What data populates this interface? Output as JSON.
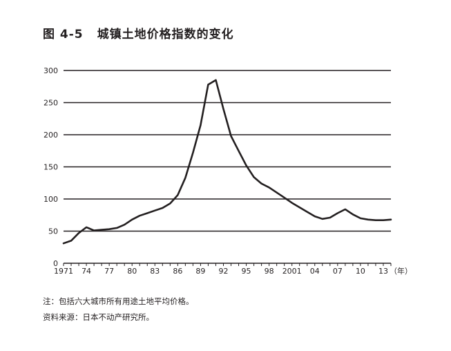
{
  "figure_number": "图 4-5",
  "figure_title": "城镇土地价格指数的变化",
  "notes": {
    "note": "注：包括六大城市所有用途土地平均价格。",
    "source": "资料来源：日本不动产研究所。"
  },
  "chart_data": {
    "type": "line",
    "title": "城镇土地价格指数的变化",
    "xlabel": "",
    "ylabel": "",
    "x_unit_label": "（年）",
    "ylim": [
      0,
      300
    ],
    "xlim": [
      1971,
      2014
    ],
    "y_ticks": [
      0,
      50,
      100,
      150,
      200,
      250,
      300
    ],
    "x_tick_values": [
      1971,
      1974,
      1977,
      1980,
      1983,
      1986,
      1989,
      1992,
      1995,
      1998,
      2001,
      2004,
      2007,
      2010,
      2013
    ],
    "x_tick_labels": [
      "1971",
      "74",
      "77",
      "80",
      "83",
      "86",
      "89",
      "92",
      "95",
      "98",
      "2001",
      "04",
      "07",
      "10",
      "13"
    ],
    "grid": "horizontal",
    "legend": "none",
    "line_color": "#231f20",
    "series": [
      {
        "x": [
          1971,
          1972,
          1973,
          1974,
          1975,
          1976,
          1977,
          1978,
          1979,
          1980,
          1981,
          1982,
          1983,
          1984,
          1985,
          1986,
          1987,
          1988,
          1989,
          1990,
          1991,
          1992,
          1993,
          1994,
          1995,
          1996,
          1997,
          1998,
          1999,
          2000,
          2001,
          2002,
          2003,
          2004,
          2005,
          2006,
          2007,
          2008,
          2009,
          2010,
          2011,
          2012,
          2013,
          2014
        ],
        "values": [
          31,
          35,
          47,
          56,
          51,
          52,
          53,
          55,
          60,
          68,
          74,
          78,
          82,
          86,
          93,
          106,
          133,
          172,
          215,
          278,
          285,
          240,
          198,
          175,
          152,
          134,
          124,
          118,
          110,
          102,
          94,
          87,
          80,
          73,
          69,
          71,
          78,
          84,
          76,
          70,
          68,
          67,
          67,
          68
        ]
      }
    ]
  }
}
